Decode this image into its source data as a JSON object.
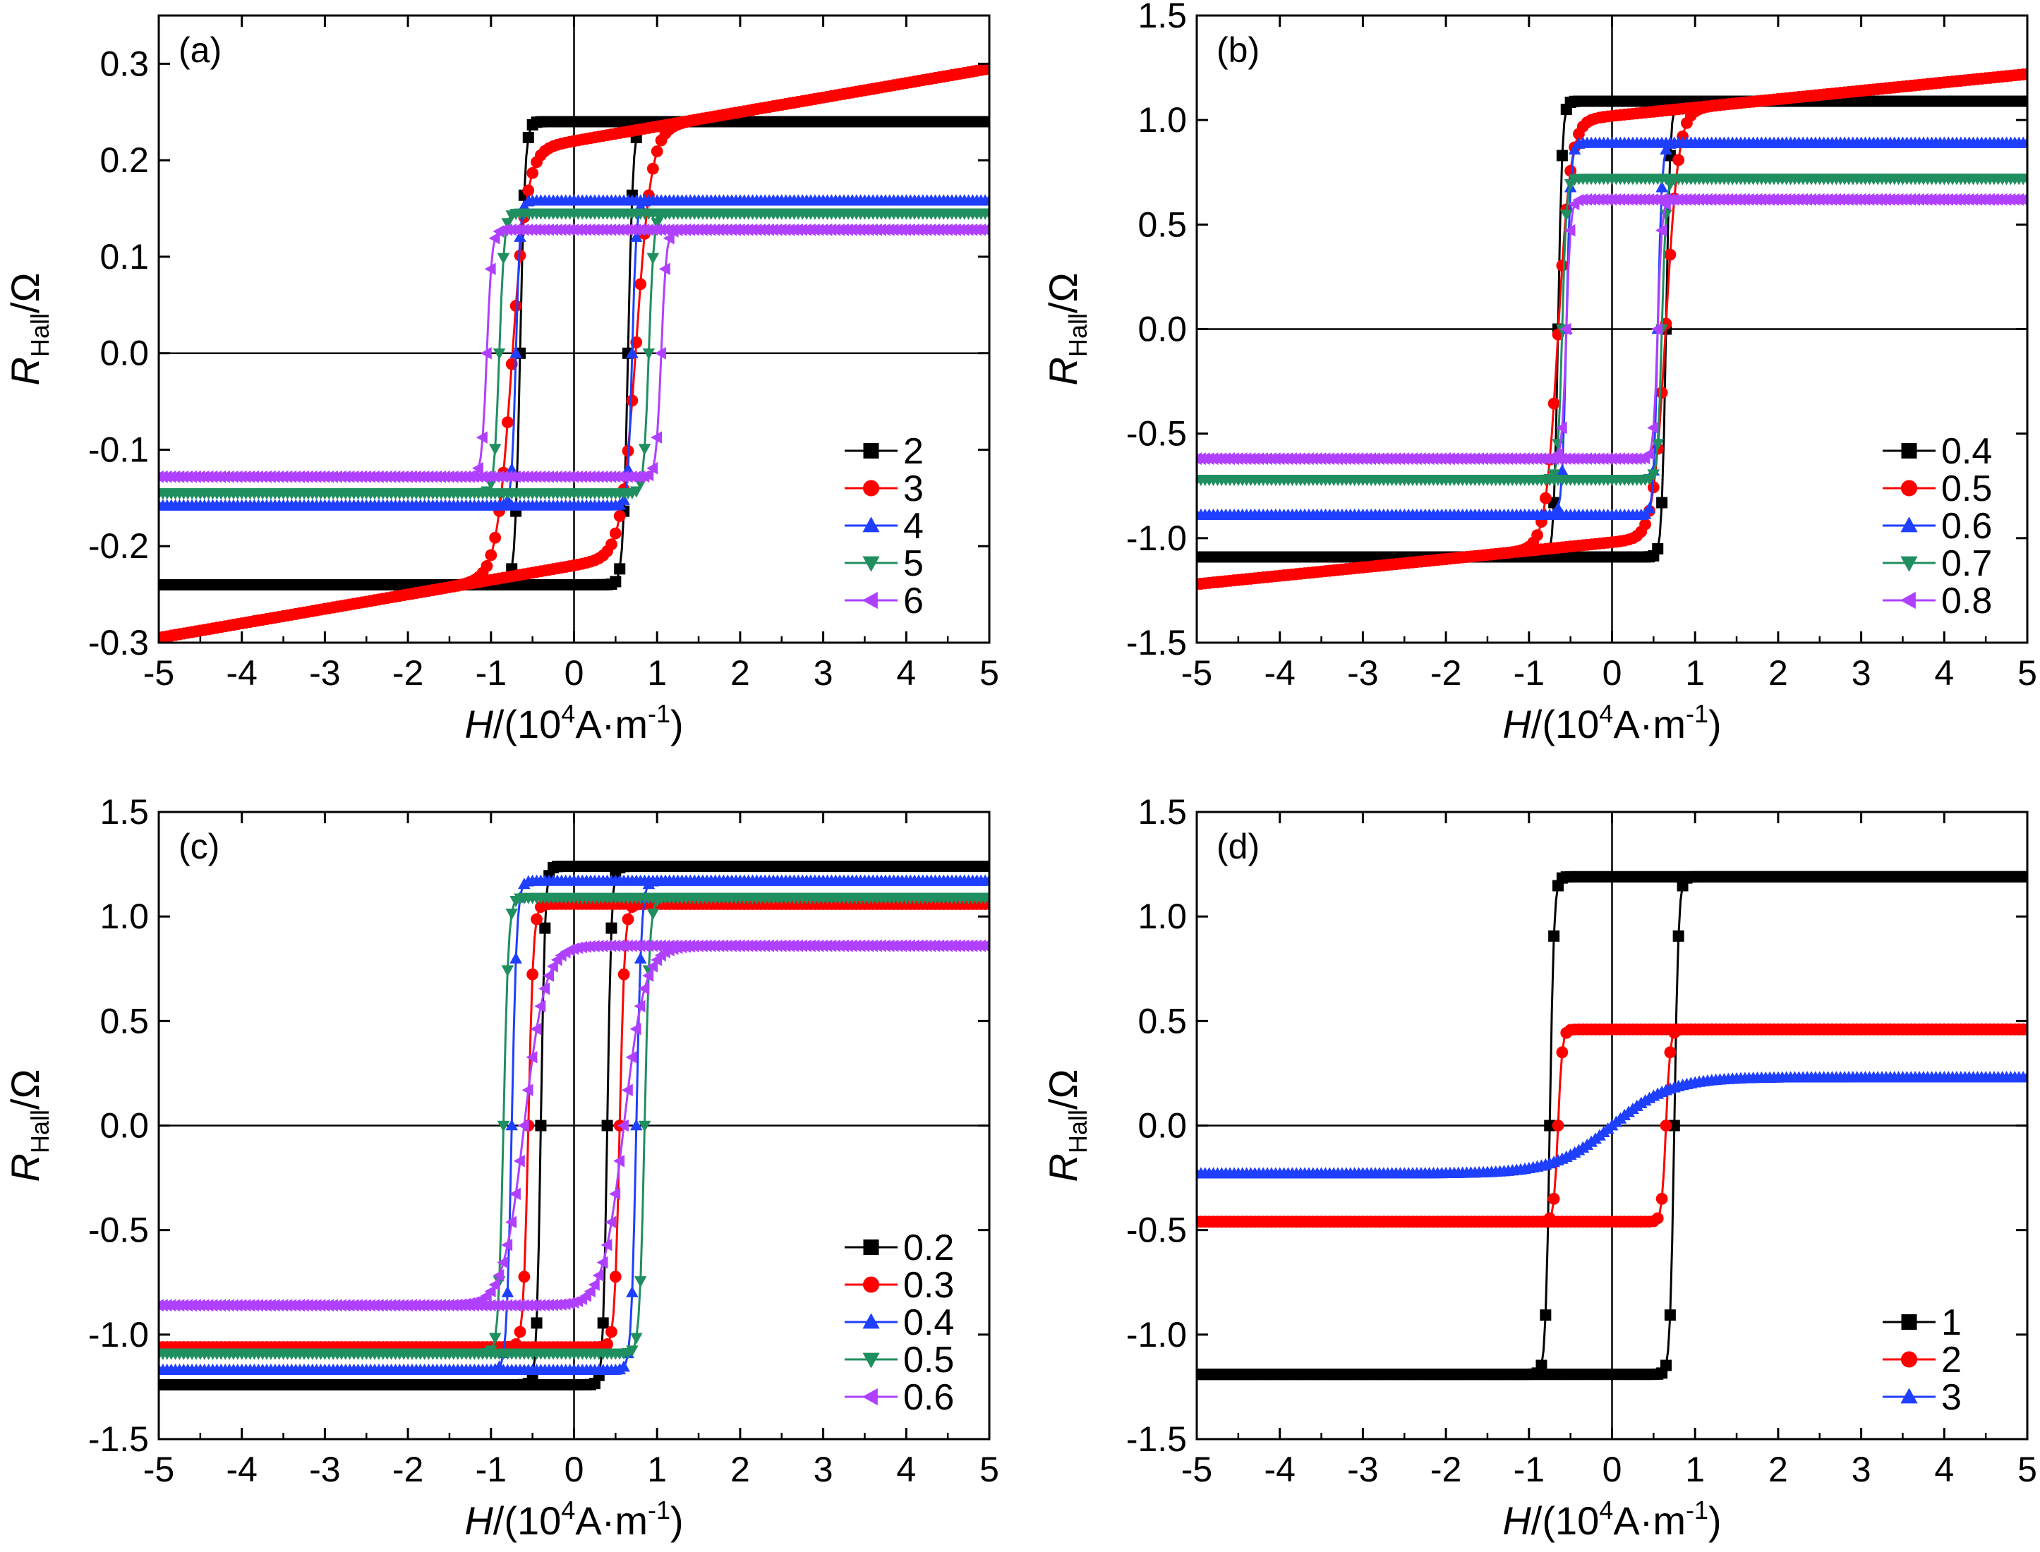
{
  "figure": {
    "xlabel_main": "H",
    "xlabel_unit_pre": "/(10",
    "xlabel_unit_exp": "4",
    "xlabel_unit_post": "A·m",
    "xlabel_unit_exp2": "-1",
    "xlabel_unit_close": ")",
    "ylabel_main": "R",
    "ylabel_sub": "Hall",
    "ylabel_unit": "/Ω"
  },
  "chart_data": [
    {
      "type": "line",
      "panel": "(a)",
      "xlim": [
        -5,
        5
      ],
      "ylim": [
        -0.3,
        0.35
      ],
      "xticks": [
        -5,
        -4,
        -3,
        -2,
        -1,
        0,
        1,
        2,
        3,
        4,
        5
      ],
      "yticks": [
        -0.3,
        -0.2,
        -0.1,
        0.0,
        0.1,
        0.2,
        0.3
      ],
      "ytick_labels": [
        "-0.3",
        "-0.2",
        "-0.1",
        "0.0",
        "0.1",
        "0.2",
        "0.3"
      ],
      "legend": "right-lower",
      "series": [
        {
          "name": "2",
          "color": "#000000",
          "marker": "square",
          "Ms": 0.24,
          "Hc": 0.65,
          "w": 0.06,
          "cant": 0.0
        },
        {
          "name": "3",
          "color": "#ff0000",
          "marker": "circle",
          "Ms": 0.22,
          "Hc": 0.75,
          "w": 0.18,
          "cant": 0.015
        },
        {
          "name": "4",
          "color": "#1f3fff",
          "marker": "triangle-up",
          "Ms": 0.158,
          "Hc": 0.7,
          "w": 0.05,
          "cant": 0.0
        },
        {
          "name": "5",
          "color": "#1f8f5f",
          "marker": "triangle-down",
          "Ms": 0.145,
          "Hc": 0.9,
          "w": 0.06,
          "cant": 0.0
        },
        {
          "name": "6",
          "color": "#b040ff",
          "marker": "triangle-left",
          "Ms": 0.128,
          "Hc": 1.05,
          "w": 0.06,
          "cant": 0.0
        }
      ]
    },
    {
      "type": "line",
      "panel": "(b)",
      "xlim": [
        -5,
        5
      ],
      "ylim": [
        -1.5,
        1.5
      ],
      "xticks": [
        -5,
        -4,
        -3,
        -2,
        -1,
        0,
        1,
        2,
        3,
        4,
        5
      ],
      "yticks": [
        -1.5,
        -1.0,
        -0.5,
        0.0,
        0.5,
        1.0,
        1.5
      ],
      "ytick_labels": [
        "-1.5",
        "-1.0",
        "-0.5",
        "0.0",
        "0.5",
        "1.0",
        "1.5"
      ],
      "legend": "right-lower",
      "series": [
        {
          "name": "0.4",
          "color": "#000000",
          "marker": "square",
          "Ms": 1.09,
          "Hc": 0.65,
          "w": 0.05,
          "cant": 0.0
        },
        {
          "name": "0.5",
          "color": "#ff0000",
          "marker": "circle",
          "Ms": 1.02,
          "Hc": 0.65,
          "w": 0.15,
          "cant": 0.04
        },
        {
          "name": "0.6",
          "color": "#1f3fff",
          "marker": "triangle-up",
          "Ms": 0.89,
          "Hc": 0.55,
          "w": 0.05,
          "cant": 0.0
        },
        {
          "name": "0.7",
          "color": "#1f8f5f",
          "marker": "triangle-down",
          "Ms": 0.72,
          "Hc": 0.6,
          "w": 0.05,
          "cant": 0.0
        },
        {
          "name": "0.8",
          "color": "#b040ff",
          "marker": "triangle-left",
          "Ms": 0.62,
          "Hc": 0.55,
          "w": 0.05,
          "cant": 0.0
        }
      ]
    },
    {
      "type": "line",
      "panel": "(c)",
      "xlim": [
        -5,
        5
      ],
      "ylim": [
        -1.5,
        1.5
      ],
      "xticks": [
        -5,
        -4,
        -3,
        -2,
        -1,
        0,
        1,
        2,
        3,
        4,
        5
      ],
      "yticks": [
        -1.5,
        -1.0,
        -0.5,
        0.0,
        0.5,
        1.0,
        1.5
      ],
      "ytick_labels": [
        "-1.5",
        "-1.0",
        "-0.5",
        "0.0",
        "0.5",
        "1.0",
        "1.5"
      ],
      "legend": "right-lower",
      "series": [
        {
          "name": "0.2",
          "color": "#000000",
          "marker": "square",
          "Ms": 1.24,
          "Hc": 0.4,
          "w": 0.05,
          "cant": 0.0
        },
        {
          "name": "0.3",
          "color": "#ff0000",
          "marker": "circle",
          "Ms": 1.06,
          "Hc": 0.55,
          "w": 0.06,
          "cant": 0.0
        },
        {
          "name": "0.4",
          "color": "#1f3fff",
          "marker": "triangle-up",
          "Ms": 1.17,
          "Hc": 0.75,
          "w": 0.06,
          "cant": 0.0
        },
        {
          "name": "0.5",
          "color": "#1f8f5f",
          "marker": "triangle-down",
          "Ms": 1.09,
          "Hc": 0.85,
          "w": 0.06,
          "cant": 0.0
        },
        {
          "name": "0.6",
          "color": "#b040ff",
          "marker": "triangle-left",
          "Ms": 0.86,
          "Hc": 0.6,
          "w": 0.25,
          "cant": 0.0
        }
      ]
    },
    {
      "type": "line",
      "panel": "(d)",
      "xlim": [
        -5,
        5
      ],
      "ylim": [
        -1.5,
        1.5
      ],
      "xticks": [
        -5,
        -4,
        -3,
        -2,
        -1,
        0,
        1,
        2,
        3,
        4,
        5
      ],
      "yticks": [
        -1.5,
        -1.0,
        -0.5,
        0.0,
        0.5,
        1.0,
        1.5
      ],
      "ytick_labels": [
        "-1.5",
        "-1.0",
        "-0.5",
        "0.0",
        "0.5",
        "1.0",
        "1.5"
      ],
      "legend": "right-lower",
      "series": [
        {
          "name": "1",
          "color": "#000000",
          "marker": "square",
          "Ms": 1.19,
          "Hc": 0.75,
          "w": 0.05,
          "cant": 0.0
        },
        {
          "name": "2",
          "color": "#ff0000",
          "marker": "circle",
          "Ms": 0.46,
          "Hc": 0.65,
          "w": 0.05,
          "cant": 0.0
        },
        {
          "name": "3",
          "color": "#1f3fff",
          "marker": "triangle-up",
          "Ms": 0.23,
          "Hc": 0.0,
          "w": 0.7,
          "cant": 0.0
        }
      ]
    }
  ]
}
